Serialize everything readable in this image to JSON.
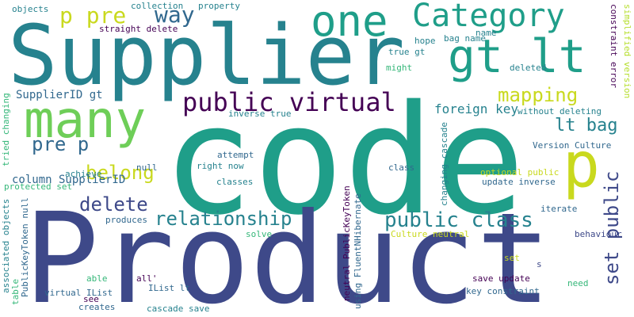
{
  "palette": {
    "dark_navy": "#3e4989",
    "deep_purple": "#440154",
    "teal_blue": "#31688e",
    "cyan_teal": "#26828e",
    "sea_green": "#1f9e89",
    "green": "#35b779",
    "light_green": "#6ece58",
    "lime": "#b5de2b",
    "yellow": "#c9d91e"
  },
  "words": [
    "code",
    "Product",
    "Supplier",
    "one",
    "Category",
    "gt lt",
    "many",
    "p",
    "p pre",
    "way",
    "public virtual",
    "mapping",
    "lt bag",
    "set public",
    "delete",
    "relationship",
    "public class",
    "belong",
    "pre p",
    "column SupplierID",
    "SupplierID gt",
    "foreign key",
    "objects",
    "collection",
    "property",
    "straight delete",
    "constraint error",
    "simplified version",
    "true gt",
    "hope",
    "bag name",
    "name",
    "might",
    "deleted",
    "inverse true",
    "without deleting",
    "tried changing",
    "changing cascade",
    "Version Culture",
    "attempt",
    "right now",
    "achieve",
    "null",
    "protected set",
    "classes",
    "class",
    "optional public",
    "update inverse",
    "neutral PublicKeyToken",
    "using FluentNHibernate",
    "Culture neutral",
    "produces",
    "iterate",
    "solve",
    "behaviour",
    "associated objects",
    "PublicKeyToken null",
    "table",
    "able",
    "all'",
    "virtual IList",
    "IList lt",
    "see",
    "creates",
    "cascade save",
    "set",
    "s",
    "save update",
    "key constraint",
    "need"
  ]
}
